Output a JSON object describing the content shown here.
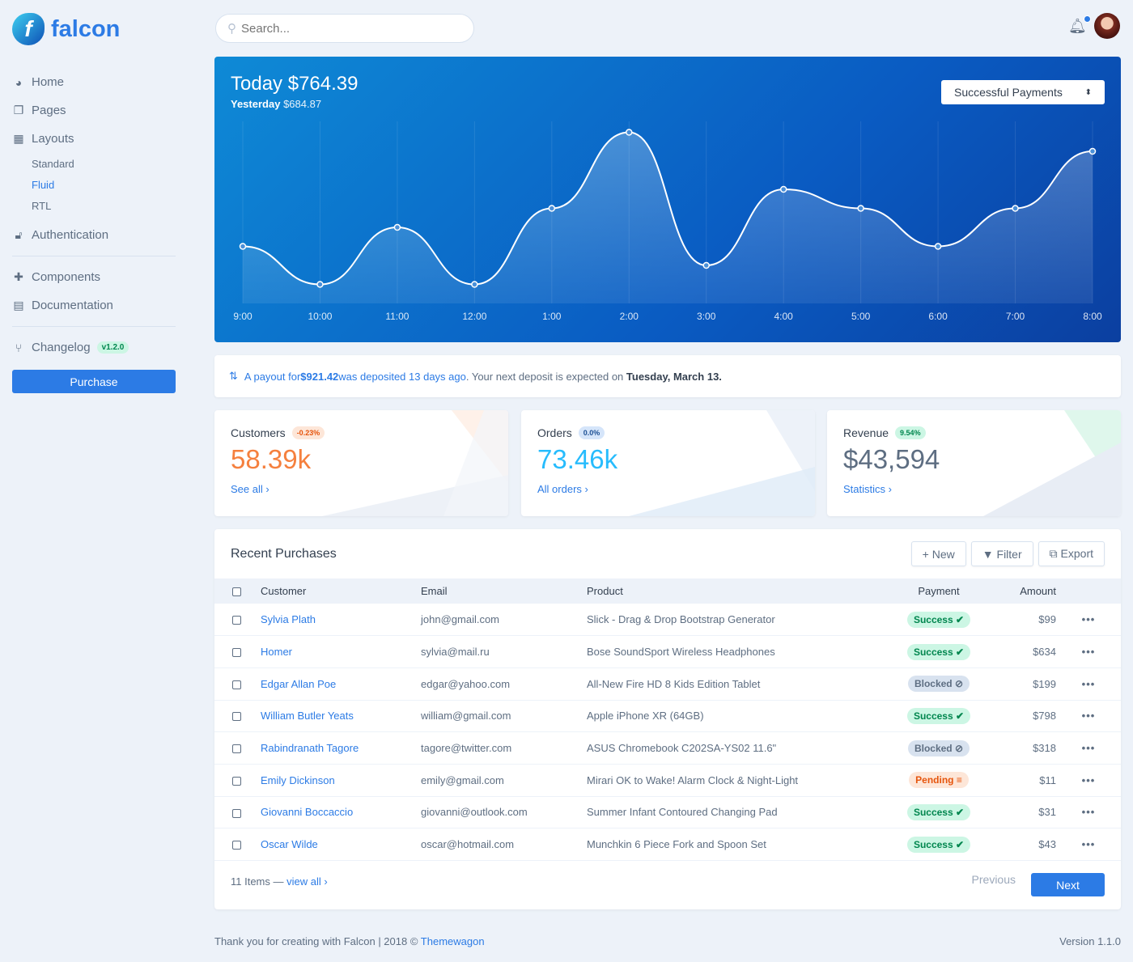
{
  "brand": {
    "name": "falcon"
  },
  "sidebar": {
    "items": [
      {
        "label": "Home",
        "icon": "pie-chart-icon"
      },
      {
        "label": "Pages",
        "icon": "copy-icon"
      },
      {
        "label": "Layouts",
        "icon": "qrcode-icon"
      }
    ],
    "layouts_sub": [
      {
        "label": "Standard"
      },
      {
        "label": "Fluid",
        "active": true
      },
      {
        "label": "RTL"
      }
    ],
    "auth": {
      "label": "Authentication",
      "icon": "unlock-icon"
    },
    "components": {
      "label": "Components",
      "icon": "puzzle-icon"
    },
    "documentation": {
      "label": "Documentation",
      "icon": "book-icon"
    },
    "changelog": {
      "label": "Changelog",
      "icon": "code-branch-icon",
      "badge": "v1.2.0"
    },
    "purchase_label": "Purchase"
  },
  "search": {
    "placeholder": "Search..."
  },
  "hero": {
    "today_label": "Today",
    "today_value": "$764.39",
    "yesterday_label": "Yesterday",
    "yesterday_value": "$684.87",
    "select_value": "Successful Payments"
  },
  "chart_data": {
    "type": "line",
    "x": [
      "9:00",
      "10:00",
      "11:00",
      "12:00",
      "1:00",
      "2:00",
      "3:00",
      "4:00",
      "5:00",
      "6:00",
      "7:00",
      "8:00"
    ],
    "values": [
      30,
      10,
      40,
      10,
      50,
      90,
      20,
      60,
      50,
      30,
      50,
      80
    ],
    "ylim": [
      0,
      100
    ],
    "grid": "vertical",
    "color": "#ffffff"
  },
  "notice": {
    "pre": "A payout for ",
    "amount": "$921.42",
    "mid": " was deposited 13 days ago",
    "post": ". Your next deposit is expected on ",
    "date": "Tuesday, March 13."
  },
  "stats": [
    {
      "label": "Customers",
      "change": "-0.23%",
      "value": "58.39k",
      "link": "See all",
      "color": "#f5803e"
    },
    {
      "label": "Orders",
      "change": "0.0%",
      "value": "73.46k",
      "link": "All orders",
      "color": "#27bcfd"
    },
    {
      "label": "Revenue",
      "change": "9.54%",
      "value": "$43,594",
      "link": "Statistics",
      "color": "#5e6e82"
    }
  ],
  "purchases": {
    "title": "Recent Purchases",
    "buttons": {
      "new": "New",
      "filter": "Filter",
      "export": "Export"
    },
    "columns": [
      "Customer",
      "Email",
      "Product",
      "Payment",
      "Amount"
    ],
    "rows": [
      {
        "customer": "Sylvia Plath",
        "email": "john@gmail.com",
        "product": "Slick - Drag & Drop Bootstrap Generator",
        "status": "Success",
        "amount": "$99"
      },
      {
        "customer": "Homer",
        "email": "sylvia@mail.ru",
        "product": "Bose SoundSport Wireless Headphones",
        "status": "Success",
        "amount": "$634"
      },
      {
        "customer": "Edgar Allan Poe",
        "email": "edgar@yahoo.com",
        "product": "All-New Fire HD 8 Kids Edition Tablet",
        "status": "Blocked",
        "amount": "$199"
      },
      {
        "customer": "William Butler Yeats",
        "email": "william@gmail.com",
        "product": "Apple iPhone XR (64GB)",
        "status": "Success",
        "amount": "$798"
      },
      {
        "customer": "Rabindranath Tagore",
        "email": "tagore@twitter.com",
        "product": "ASUS Chromebook C202SA-YS02 11.6\"",
        "status": "Blocked",
        "amount": "$318"
      },
      {
        "customer": "Emily Dickinson",
        "email": "emily@gmail.com",
        "product": "Mirari OK to Wake! Alarm Clock & Night-Light",
        "status": "Pending",
        "amount": "$11"
      },
      {
        "customer": "Giovanni Boccaccio",
        "email": "giovanni@outlook.com",
        "product": "Summer Infant Contoured Changing Pad",
        "status": "Success",
        "amount": "$31"
      },
      {
        "customer": "Oscar Wilde",
        "email": "oscar@hotmail.com",
        "product": "Munchkin 6 Piece Fork and Spoon Set",
        "status": "Success",
        "amount": "$43"
      }
    ],
    "footer_count": "11 Items —",
    "view_all": "view all",
    "previous": "Previous",
    "next": "Next"
  },
  "footer": {
    "text": "Thank you for creating with Falcon | 2018 © ",
    "link": "Themewagon",
    "version": "Version 1.1.0"
  }
}
